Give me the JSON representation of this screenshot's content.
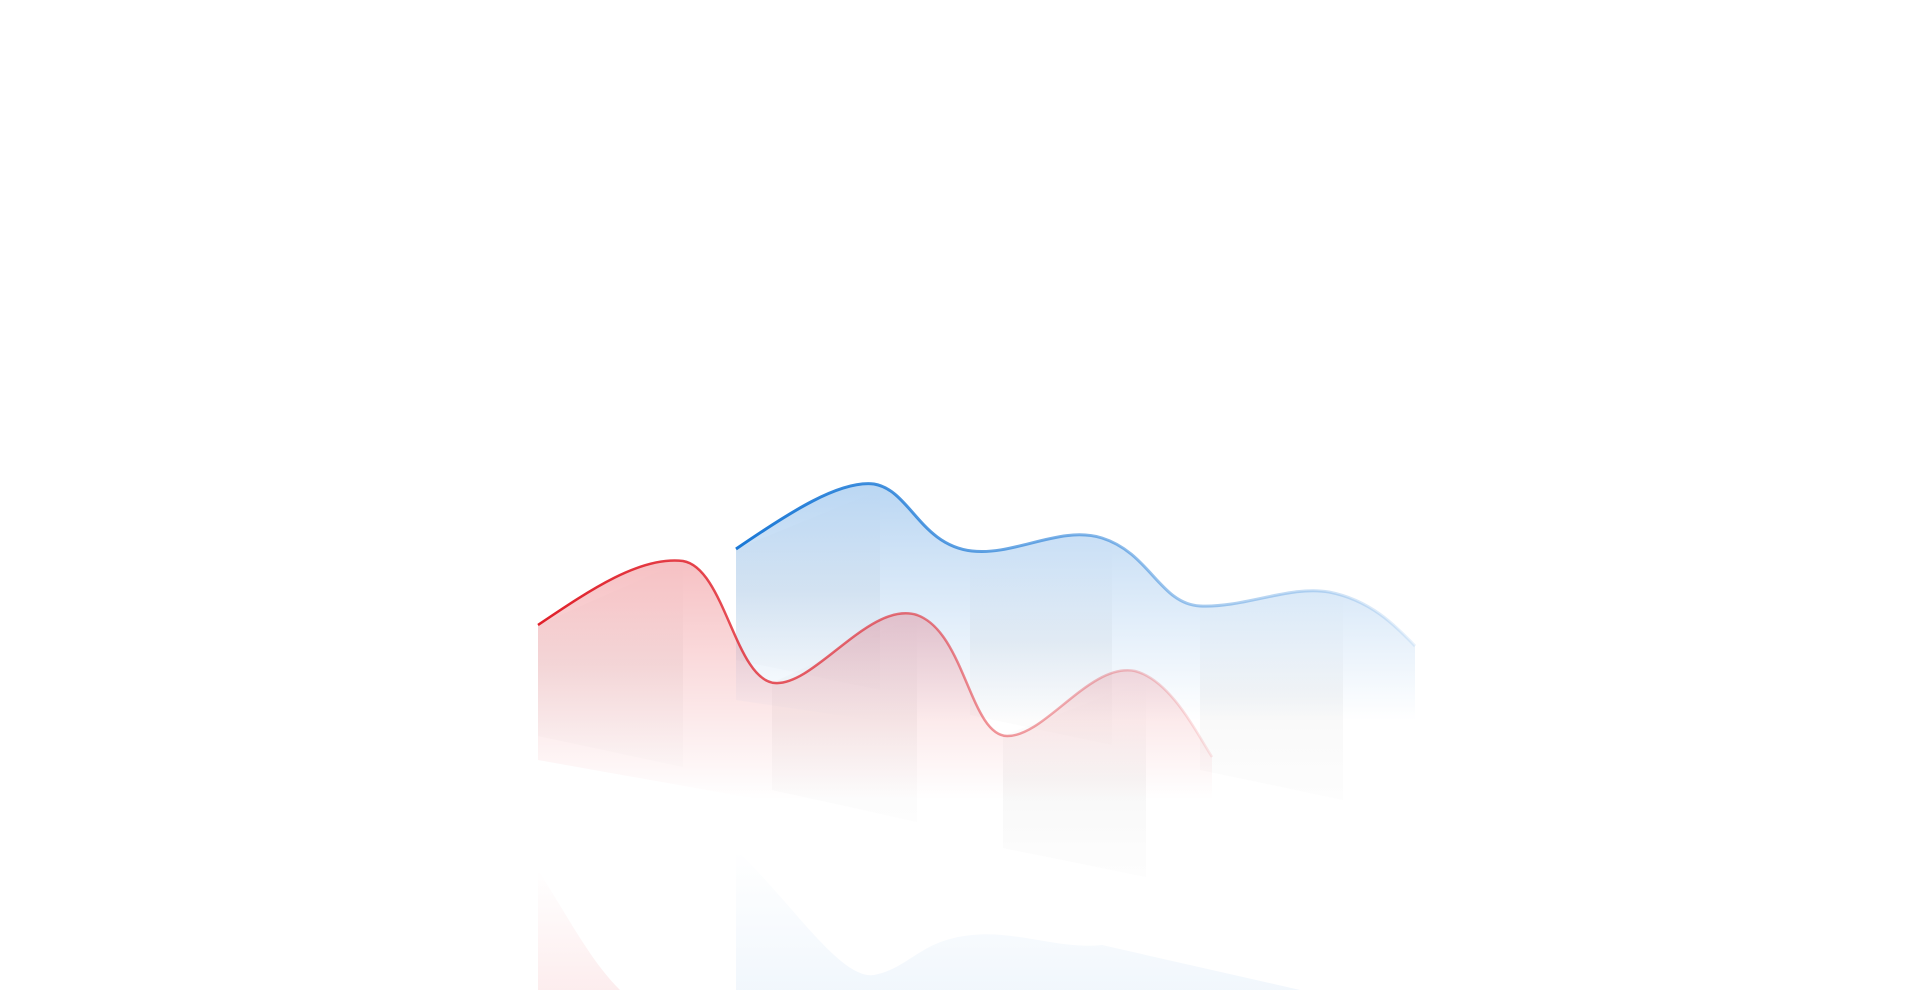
{
  "ribbons": [
    {
      "color": "#e0202a"
    },
    {
      "color": "#1a78d6"
    }
  ]
}
